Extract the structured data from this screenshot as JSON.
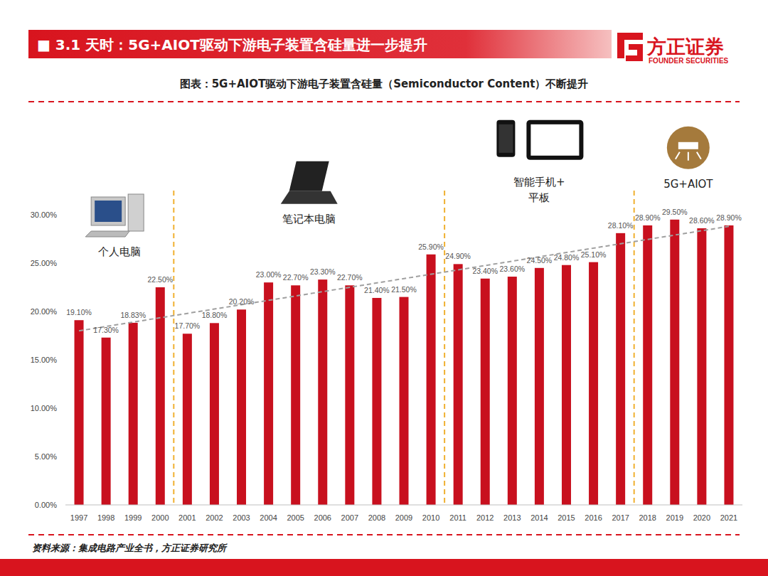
{
  "page": {
    "header": "■ 3.1 天时：5G+AIOT驱动下游电子装置含硅量进一步提升",
    "logo": "方正证券",
    "logo_sub": "FOUNDER SECURITIES",
    "source": "资料来源：集成电路产业全书，方正证券研究所"
  },
  "chart_data": {
    "type": "bar",
    "title": "图表：5G+AIOT驱动下游电子装置含硅量（Semiconductor Content）不断提升",
    "categories": [
      "1997",
      "1998",
      "1999",
      "2000",
      "2001",
      "2002",
      "2003",
      "2004",
      "2005",
      "2006",
      "2007",
      "2008",
      "2009",
      "2010",
      "2011",
      "2012",
      "2013",
      "2014",
      "2015",
      "2016",
      "2017",
      "2018",
      "2019",
      "2020",
      "2021"
    ],
    "values": [
      19.1,
      17.3,
      18.83,
      22.5,
      17.7,
      18.8,
      20.2,
      23.0,
      22.7,
      23.3,
      22.7,
      21.4,
      21.5,
      25.9,
      24.9,
      23.4,
      23.6,
      24.5,
      24.8,
      25.1,
      28.1,
      28.9,
      29.5,
      28.6,
      28.9
    ],
    "value_labels": [
      "19.10%",
      "17.30%",
      "18.83%",
      "22.50%",
      "17.70%",
      "18.80%",
      "20.20%",
      "23.00%",
      "22.70%",
      "23.30%",
      "22.70%",
      "21.40%",
      "21.50%",
      "25.90%",
      "24.90%",
      "23.40%",
      "23.60%",
      "24.50%",
      "24.80%",
      "25.10%",
      "28.10%",
      "28.90%",
      "29.50%",
      "28.60%",
      "28.90%"
    ],
    "color": "#c8101e",
    "ylim": [
      0,
      30
    ],
    "yticks": [
      {
        "value": 0,
        "label": "0.00%"
      },
      {
        "value": 5,
        "label": "5.00%"
      },
      {
        "value": 10,
        "label": "10.00%"
      },
      {
        "value": 15,
        "label": "15.00%"
      },
      {
        "value": 20,
        "label": "20.00%"
      },
      {
        "value": 25,
        "label": "25.00%"
      },
      {
        "value": 30,
        "label": "30.00%"
      }
    ],
    "grid": false,
    "data_labels": true,
    "trend": [
      18.0,
      28.8
    ],
    "eras": [
      {
        "label": [
          "个人电脑"
        ],
        "from": "1997",
        "to": "2000"
      },
      {
        "label": [
          "笔记本电脑"
        ],
        "from": "2001",
        "to": "2010"
      },
      {
        "label": [
          "智能手机+",
          "平板"
        ],
        "from": "2011",
        "to": "2017"
      },
      {
        "label": [
          "5G+AIOT"
        ],
        "from": "2018",
        "to": "2021"
      }
    ]
  }
}
